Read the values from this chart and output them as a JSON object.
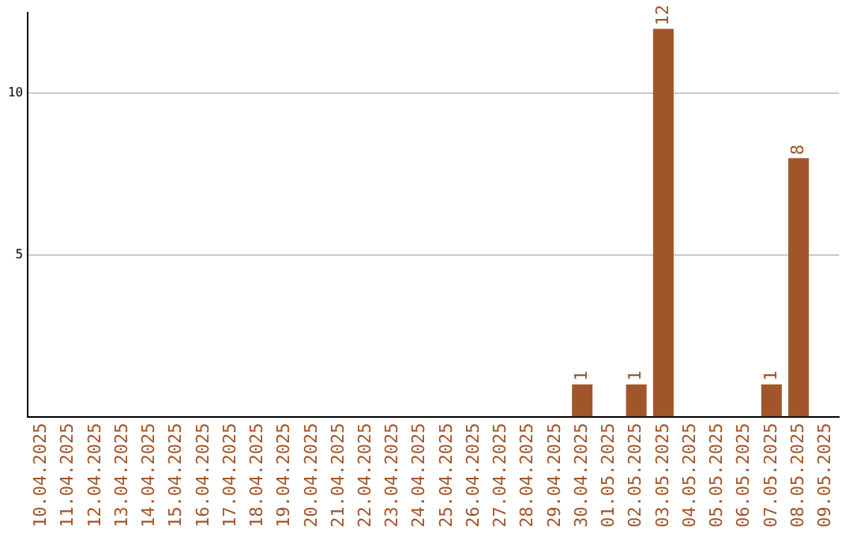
{
  "chart_data": {
    "type": "bar",
    "categories": [
      "10.04.2025",
      "11.04.2025",
      "12.04.2025",
      "13.04.2025",
      "14.04.2025",
      "15.04.2025",
      "16.04.2025",
      "17.04.2025",
      "18.04.2025",
      "19.04.2025",
      "20.04.2025",
      "21.04.2025",
      "22.04.2025",
      "23.04.2025",
      "24.04.2025",
      "25.04.2025",
      "26.04.2025",
      "27.04.2025",
      "28.04.2025",
      "29.04.2025",
      "30.04.2025",
      "01.05.2025",
      "02.05.2025",
      "03.05.2025",
      "04.05.2025",
      "05.05.2025",
      "06.05.2025",
      "07.05.2025",
      "08.05.2025",
      "09.05.2025"
    ],
    "values": [
      0,
      0,
      0,
      0,
      0,
      0,
      0,
      0,
      0,
      0,
      0,
      0,
      0,
      0,
      0,
      0,
      0,
      0,
      0,
      0,
      1,
      0,
      1,
      12,
      0,
      0,
      0,
      1,
      8,
      0
    ],
    "value_labels": [
      null,
      null,
      null,
      null,
      null,
      null,
      null,
      null,
      null,
      null,
      null,
      null,
      null,
      null,
      null,
      null,
      null,
      null,
      null,
      null,
      "1",
      null,
      "1",
      "12",
      null,
      null,
      null,
      "1",
      "8",
      null
    ],
    "color": "#a0562a",
    "ylim": [
      0,
      12.5
    ],
    "yticks": [
      5,
      10
    ],
    "grid": "y",
    "legend": false
  }
}
